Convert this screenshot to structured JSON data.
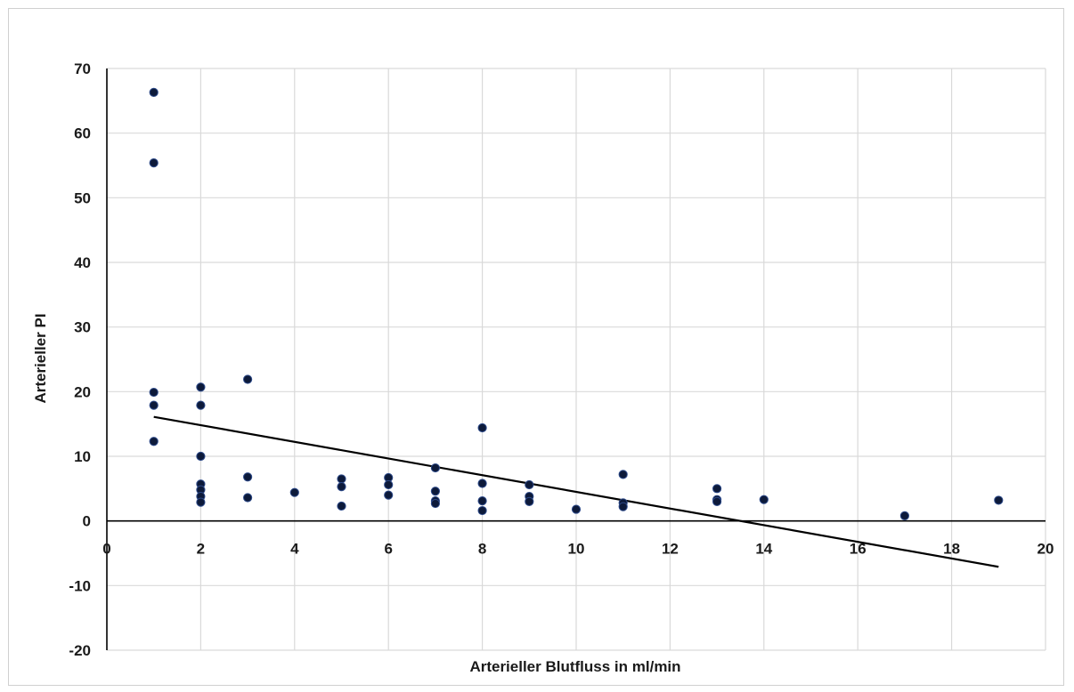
{
  "chart_data": {
    "type": "scatter",
    "title": "",
    "xlabel": "Arterieller Blutfluss in ml/min",
    "ylabel": "Arterieller PI",
    "xlim": [
      0,
      20
    ],
    "ylim": [
      -20,
      70
    ],
    "x_ticks": [
      0,
      2,
      4,
      6,
      8,
      10,
      12,
      14,
      16,
      18,
      20
    ],
    "y_ticks": [
      -20,
      -10,
      0,
      10,
      20,
      30,
      40,
      50,
      60,
      70
    ],
    "x_tick_labels": [
      "0",
      "2",
      "4",
      "6",
      "8",
      "10",
      "12",
      "14",
      "16",
      "18",
      "20"
    ],
    "y_tick_labels": [
      "-20",
      "-10",
      "0",
      "10",
      "20",
      "30",
      "40",
      "50",
      "60",
      "70"
    ],
    "grid": true,
    "marker_color": "#0d1a3a",
    "trendline_color": "#000000",
    "points": [
      {
        "x": 1,
        "y": 66.3
      },
      {
        "x": 1,
        "y": 55.4
      },
      {
        "x": 1,
        "y": 19.9
      },
      {
        "x": 1,
        "y": 17.9
      },
      {
        "x": 1,
        "y": 12.3
      },
      {
        "x": 2,
        "y": 20.7
      },
      {
        "x": 2,
        "y": 17.9
      },
      {
        "x": 2,
        "y": 10.0
      },
      {
        "x": 2,
        "y": 5.7
      },
      {
        "x": 2,
        "y": 4.8
      },
      {
        "x": 2,
        "y": 3.8
      },
      {
        "x": 2,
        "y": 2.9
      },
      {
        "x": 3,
        "y": 21.9
      },
      {
        "x": 3,
        "y": 6.8
      },
      {
        "x": 3,
        "y": 3.6
      },
      {
        "x": 4,
        "y": 4.4
      },
      {
        "x": 5,
        "y": 6.5
      },
      {
        "x": 5,
        "y": 5.3
      },
      {
        "x": 5,
        "y": 2.3
      },
      {
        "x": 6,
        "y": 6.7
      },
      {
        "x": 6,
        "y": 5.6
      },
      {
        "x": 6,
        "y": 4.0
      },
      {
        "x": 7,
        "y": 8.2
      },
      {
        "x": 7,
        "y": 4.6
      },
      {
        "x": 7,
        "y": 3.1
      },
      {
        "x": 7,
        "y": 2.7
      },
      {
        "x": 8,
        "y": 14.4
      },
      {
        "x": 8,
        "y": 5.8
      },
      {
        "x": 8,
        "y": 3.1
      },
      {
        "x": 8,
        "y": 1.6
      },
      {
        "x": 9,
        "y": 5.6
      },
      {
        "x": 9,
        "y": 3.8
      },
      {
        "x": 9,
        "y": 3.0
      },
      {
        "x": 10,
        "y": 1.8
      },
      {
        "x": 11,
        "y": 7.2
      },
      {
        "x": 11,
        "y": 2.8
      },
      {
        "x": 11,
        "y": 2.2
      },
      {
        "x": 13,
        "y": 5.0
      },
      {
        "x": 13,
        "y": 3.3
      },
      {
        "x": 13,
        "y": 3.0
      },
      {
        "x": 14,
        "y": 3.3
      },
      {
        "x": 17,
        "y": 0.8
      },
      {
        "x": 19,
        "y": 3.2
      }
    ],
    "trendline": {
      "x": [
        1,
        19
      ],
      "y": [
        16.1,
        -7.1
      ]
    }
  }
}
